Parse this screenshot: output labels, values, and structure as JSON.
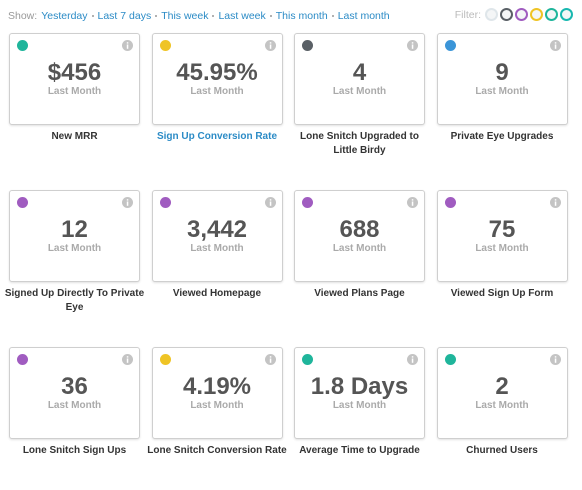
{
  "toolbar": {
    "show_label": "Show:",
    "links": [
      "Yesterday",
      "Last 7 days",
      "This week",
      "Last week",
      "This month",
      "Last month"
    ],
    "filter_label": "Filter:",
    "filter_colors": [
      "#dfe6ea",
      "#5a6066",
      "#a05cc0",
      "#efc425",
      "#1fb59b",
      "#19b8b0"
    ]
  },
  "cards": [
    {
      "color": "#1fb59b",
      "value": "$456",
      "period": "Last Month",
      "title": "New MRR"
    },
    {
      "color": "#efc425",
      "value": "45.95%",
      "period": "Last Month",
      "title": "Sign Up Conversion Rate",
      "title_color": "#2b8bc6"
    },
    {
      "color": "#5a6066",
      "value": "4",
      "period": "Last Month",
      "title": "Lone Snitch Upgraded to Little Birdy"
    },
    {
      "color": "#3b95d8",
      "value": "9",
      "period": "Last Month",
      "title": "Private Eye Upgrades"
    },
    {
      "color": "#a05cc0",
      "value": "12",
      "period": "Last Month",
      "title": "Signed Up Directly To Private Eye"
    },
    {
      "color": "#a05cc0",
      "value": "3,442",
      "period": "Last Month",
      "title": "Viewed Homepage"
    },
    {
      "color": "#a05cc0",
      "value": "688",
      "period": "Last Month",
      "title": "Viewed Plans Page"
    },
    {
      "color": "#a05cc0",
      "value": "75",
      "period": "Last Month",
      "title": "Viewed Sign Up Form"
    },
    {
      "color": "#a05cc0",
      "value": "36",
      "period": "Last Month",
      "title": "Lone Snitch Sign Ups"
    },
    {
      "color": "#efc425",
      "value": "4.19%",
      "period": "Last Month",
      "title": "Lone Snitch Conversion Rate"
    },
    {
      "color": "#1fb59b",
      "value": "1.8 Days",
      "period": "Last Month",
      "title": "Average Time to Upgrade"
    },
    {
      "color": "#1fb59b",
      "value": "2",
      "period": "Last Month",
      "title": "Churned Users"
    }
  ]
}
